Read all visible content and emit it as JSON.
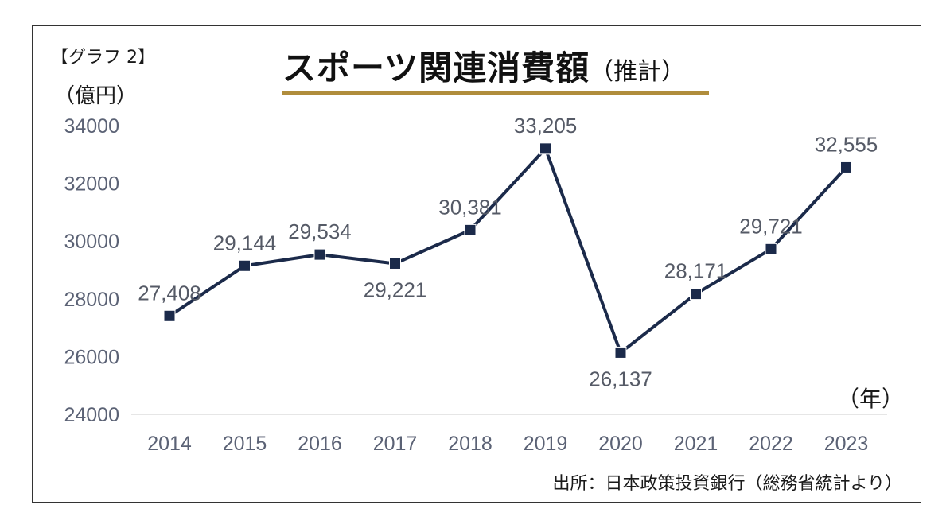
{
  "header": {
    "graph_tag": "【グラフ 2】",
    "unit": "（億円）",
    "title": "スポーツ関連消費額",
    "title_suffix": "（推計）"
  },
  "footer": {
    "x_unit": "（年）",
    "source": "出所：日本政策投資銀行（総務省統計より）"
  },
  "colors": {
    "line": "#1b2a4a",
    "marker": "#1b2a4a",
    "underline": "#b08d3c",
    "axis_text": "#5b6275"
  },
  "chart_data": {
    "type": "line",
    "title": "スポーツ関連消費額（推計）",
    "ylabel": "（億円）",
    "xlabel": "（年）",
    "categories": [
      "2014",
      "2015",
      "2016",
      "2017",
      "2018",
      "2019",
      "2020",
      "2021",
      "2022",
      "2023"
    ],
    "series": [
      {
        "values": [
          27408,
          29144,
          29534,
          29221,
          30381,
          33205,
          26137,
          28171,
          29721,
          32555
        ]
      }
    ],
    "data_labels": [
      "27,408",
      "29,144",
      "29,534",
      "29,221",
      "30,381",
      "33,205",
      "26,137",
      "28,171",
      "29,721",
      "32,555"
    ],
    "label_positions": [
      "above",
      "above",
      "above",
      "below",
      "above",
      "above",
      "below",
      "above",
      "above",
      "above"
    ],
    "ylim": [
      24000,
      34000
    ],
    "yticks": [
      "24000",
      "26000",
      "28000",
      "30000",
      "32000",
      "34000"
    ],
    "grid": false,
    "marker": "square",
    "legend": "none"
  }
}
